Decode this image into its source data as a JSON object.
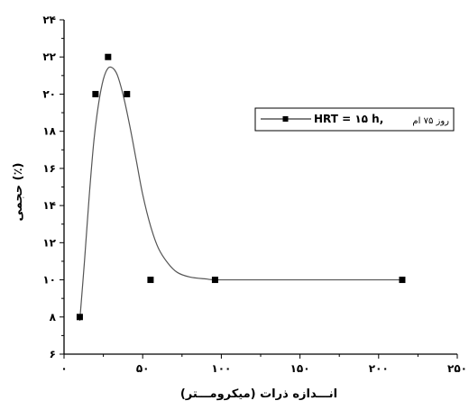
{
  "chart_data": {
    "type": "scatter",
    "xlabel": "انـــدازه ذرات (میکرومـــتر)",
    "ylabel": "حجمی (٪)",
    "xlim": [
      0,
      250
    ],
    "ylim": [
      6,
      24
    ],
    "x_ticks": [
      0,
      50,
      100,
      150,
      200,
      250
    ],
    "y_ticks": [
      6,
      8,
      10,
      12,
      14,
      16,
      18,
      20,
      22,
      24
    ],
    "x_tick_labels": [
      "٠",
      "۵٠",
      "١٠٠",
      "١۵٠",
      "٢٠٠",
      "٢۵٠"
    ],
    "y_tick_labels": [
      "۶",
      "٨",
      "١٠",
      "١٢",
      "١۴",
      "١۶",
      "١٨",
      "٢٠",
      "٢٢",
      "٢۴"
    ],
    "grid": false,
    "legend_position": "right",
    "series": [
      {
        "name": "روز ۷۵ ام, HRT = ۱۵ h",
        "legend_prefix": "روز ۷۵ ام",
        "legend_main": "HRT = ۱۵ h,",
        "points": [
          {
            "x": 10,
            "y": 8
          },
          {
            "x": 20,
            "y": 20
          },
          {
            "x": 28,
            "y": 22
          },
          {
            "x": 40,
            "y": 20
          },
          {
            "x": 55,
            "y": 10
          },
          {
            "x": 96,
            "y": 10
          },
          {
            "x": 215,
            "y": 10
          }
        ],
        "fit_curve": [
          {
            "x": 10,
            "y": 7.8
          },
          {
            "x": 13,
            "y": 11
          },
          {
            "x": 16,
            "y": 14.5
          },
          {
            "x": 19,
            "y": 17.5
          },
          {
            "x": 22,
            "y": 19.5
          },
          {
            "x": 25,
            "y": 20.8
          },
          {
            "x": 28,
            "y": 21.4
          },
          {
            "x": 31,
            "y": 21.4
          },
          {
            "x": 34,
            "y": 21.0
          },
          {
            "x": 38,
            "y": 19.8
          },
          {
            "x": 42,
            "y": 18.2
          },
          {
            "x": 46,
            "y": 16.4
          },
          {
            "x": 50,
            "y": 14.6
          },
          {
            "x": 55,
            "y": 12.9
          },
          {
            "x": 60,
            "y": 11.7
          },
          {
            "x": 66,
            "y": 10.9
          },
          {
            "x": 72,
            "y": 10.4
          },
          {
            "x": 80,
            "y": 10.15
          },
          {
            "x": 90,
            "y": 10.05
          },
          {
            "x": 100,
            "y": 10.0
          },
          {
            "x": 150,
            "y": 10.0
          },
          {
            "x": 215,
            "y": 10.0
          }
        ]
      }
    ]
  }
}
